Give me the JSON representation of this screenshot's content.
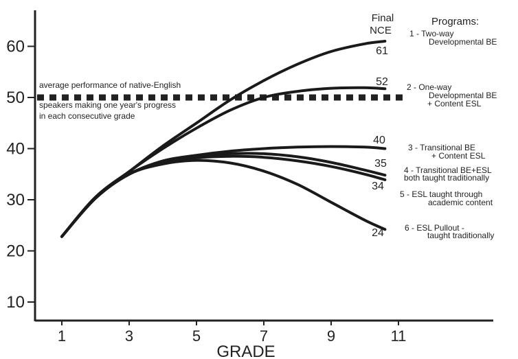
{
  "chart_data": {
    "type": "line",
    "title": "",
    "xlabel": "GRADE",
    "ylabel": "",
    "xlim": [
      0.5,
      12.5
    ],
    "ylim": [
      7,
      67
    ],
    "x_ticks": [
      "1",
      "3",
      "5",
      "7",
      "9",
      "11"
    ],
    "y_ticks": [
      "10",
      "20",
      "30",
      "40",
      "50",
      "60"
    ],
    "final_nce_header": [
      "Final",
      "NCE"
    ],
    "programs_header": "Programs:",
    "reference_line": {
      "y": 50,
      "style": "dashed",
      "text": [
        "average performance of native-English",
        "speakers making one year's progress",
        "in each consecutive grade"
      ]
    },
    "series": [
      {
        "id": "p1",
        "final_label": "61",
        "program_lines": [
          "1 - Two-way",
          "Developmental BE"
        ],
        "points": [
          [
            1,
            22.8
          ],
          [
            2,
            30.5
          ],
          [
            3,
            35.5
          ],
          [
            4,
            40.5
          ],
          [
            5,
            45
          ],
          [
            6,
            49.5
          ],
          [
            7,
            53.3
          ],
          [
            8,
            56.5
          ],
          [
            9,
            59
          ],
          [
            10,
            60.5
          ],
          [
            10.6,
            61
          ]
        ]
      },
      {
        "id": "p2",
        "final_label": "52",
        "program_lines": [
          "2 - One-way",
          "Developmental BE",
          "+ Content ESL"
        ],
        "points": [
          [
            1,
            22.8
          ],
          [
            2,
            30.5
          ],
          [
            3,
            35.5
          ],
          [
            4,
            40
          ],
          [
            5,
            44
          ],
          [
            6,
            47.5
          ],
          [
            7,
            50
          ],
          [
            8,
            51.2
          ],
          [
            9,
            51.8
          ],
          [
            10,
            51.9
          ],
          [
            10.6,
            51.7
          ]
        ]
      },
      {
        "id": "p3",
        "final_label": "40",
        "program_lines": [
          "3 - Transitional BE",
          "+ Content ESL"
        ],
        "points": [
          [
            1,
            22.8
          ],
          [
            2,
            30.5
          ],
          [
            3,
            35
          ],
          [
            4,
            37.6
          ],
          [
            5,
            38.7
          ],
          [
            6,
            39.5
          ],
          [
            7,
            40
          ],
          [
            8,
            40.3
          ],
          [
            9,
            40.4
          ],
          [
            10,
            40.3
          ],
          [
            10.6,
            40
          ]
        ]
      },
      {
        "id": "p4",
        "final_label": "35",
        "program_lines": [
          "4 - Transitional BE+ESL",
          "both taught traditionally"
        ],
        "points": [
          [
            1,
            22.8
          ],
          [
            2,
            30.3
          ],
          [
            3,
            35
          ],
          [
            4,
            37.5
          ],
          [
            5,
            38.5
          ],
          [
            6,
            39
          ],
          [
            7,
            39
          ],
          [
            8,
            38.4
          ],
          [
            9,
            37.3
          ],
          [
            10,
            35.8
          ],
          [
            10.6,
            34.8
          ]
        ]
      },
      {
        "id": "p5",
        "final_label": "34",
        "program_lines": [
          "5 - ESL taught through",
          "academic content"
        ],
        "points": [
          [
            1,
            22.8
          ],
          [
            2,
            30.3
          ],
          [
            3,
            35
          ],
          [
            4,
            37.3
          ],
          [
            5,
            38.2
          ],
          [
            6,
            38.5
          ],
          [
            7,
            38.3
          ],
          [
            8,
            37.6
          ],
          [
            9,
            36.5
          ],
          [
            10,
            35
          ],
          [
            10.6,
            33.9
          ]
        ]
      },
      {
        "id": "p6",
        "final_label": "24",
        "program_lines": [
          "6 - ESL Pullout -",
          "taught traditionally"
        ],
        "points": [
          [
            1,
            22.8
          ],
          [
            2,
            30.3
          ],
          [
            3,
            35
          ],
          [
            4,
            37
          ],
          [
            5,
            37.7
          ],
          [
            6,
            37.2
          ],
          [
            7,
            35.6
          ],
          [
            8,
            33
          ],
          [
            9,
            29.5
          ],
          [
            10,
            26
          ],
          [
            10.6,
            24.2
          ]
        ]
      }
    ]
  }
}
